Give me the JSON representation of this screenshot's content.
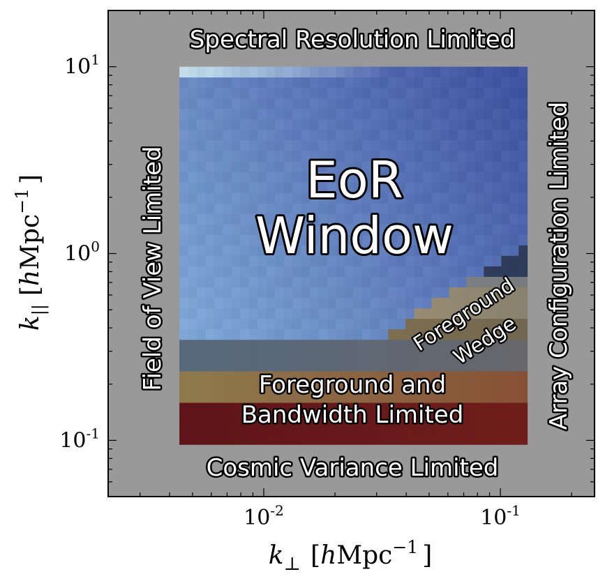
{
  "chart_data": {
    "type": "heatmap",
    "x_scale": "log",
    "y_scale": "log",
    "xlim": [
      0.0022,
      0.25
    ],
    "ylim": [
      0.05,
      20
    ],
    "xlabel": {
      "base": "k",
      "sub": "⊥",
      "bracket_open": "[",
      "h": "h",
      "unit": "Mpc",
      "exp": "−1",
      "bracket_close": "]"
    },
    "ylabel": {
      "base": "k",
      "sub": "||",
      "bracket_open": "[",
      "h": "h",
      "unit": "Mpc",
      "exp": "−1",
      "bracket_close": "]"
    },
    "xticks": [
      {
        "value": 0.01,
        "base": "10",
        "exp": "-2"
      },
      {
        "value": 0.1,
        "base": "10",
        "exp": "-1"
      }
    ],
    "yticks": [
      {
        "value": 0.1,
        "base": "10",
        "exp": "-1"
      },
      {
        "value": 1,
        "base": "10",
        "exp": "0"
      },
      {
        "value": 10,
        "base": "10",
        "exp": "1"
      }
    ],
    "observable_region": {
      "kperp": [
        0.0044,
        0.13
      ],
      "kpar": [
        0.095,
        10
      ]
    },
    "bands": [
      {
        "kpar": [
          0.095,
          0.17
        ],
        "color": "#5e1418"
      },
      {
        "kpar": [
          0.17,
          0.25
        ],
        "color": "#8e7a4c"
      },
      {
        "kpar": [
          0.25,
          0.33
        ],
        "color": "#56697d"
      }
    ],
    "wedge": {
      "kperp_start": 0.028,
      "kpar_at_start": 0.33,
      "kpar_at_end": 1.1
    },
    "regions": {
      "spectral": "Spectral Resolution Limited",
      "fov": "Field of View Limited",
      "array": "Array Configuration Limited",
      "cosmic": "Cosmic Variance Limited",
      "eor_line1": "EoR",
      "eor_line2": "Window",
      "wedge_line1": "Foreground",
      "wedge_line2": "Wedge",
      "fgbw_line1": "Foreground and",
      "fgbw_line2": "Bandwidth Limited"
    },
    "colors": {
      "excluded": "#999999",
      "eor_low": "#89b4dd",
      "eor_high": "#3e52a0",
      "eor_top": "#c2dde9",
      "wedge_dark": "#2e3b5a"
    }
  }
}
